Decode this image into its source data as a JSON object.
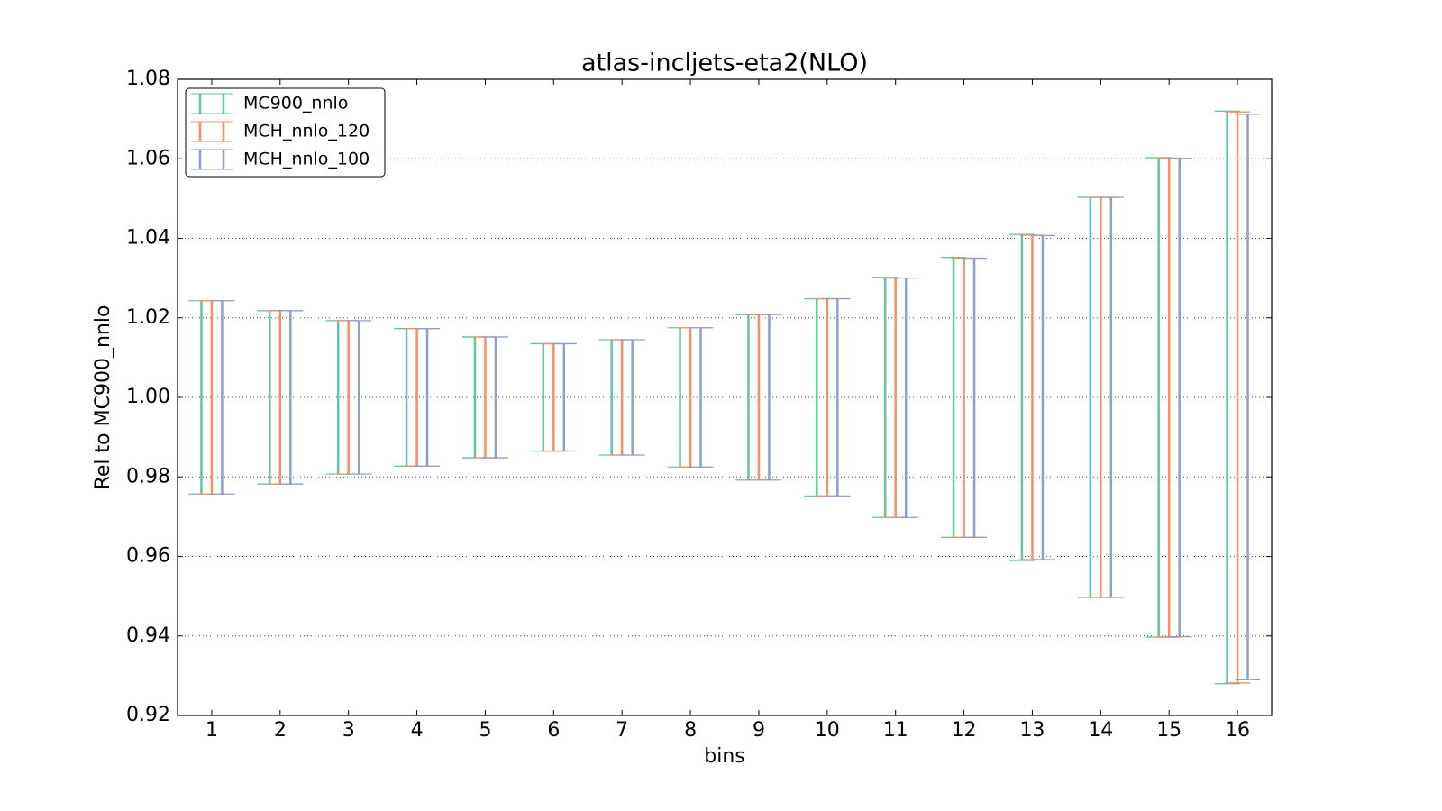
{
  "chart_data": {
    "type": "errorbar",
    "title": "atlas-incljets-eta2(NLO)",
    "x_label": "bins",
    "y_label": "Rel to MC900_nnlo",
    "x": [
      1,
      2,
      3,
      4,
      5,
      6,
      7,
      8,
      9,
      10,
      11,
      12,
      13,
      14,
      15,
      16
    ],
    "xlim": [
      0.5,
      16.5
    ],
    "xticks": [
      1,
      2,
      3,
      4,
      5,
      6,
      7,
      8,
      9,
      10,
      11,
      12,
      13,
      14,
      15,
      16
    ],
    "ylim": [
      0.92,
      1.08
    ],
    "yticks": [
      0.92,
      0.94,
      0.96,
      0.98,
      {
        "value": 1,
        "label": "1.00"
      },
      1.02,
      1.04,
      1.06,
      1.08
    ],
    "grid": true,
    "legend": "upper left",
    "series": [
      {
        "name": "MC900_nnlo",
        "color": "#66c2a5",
        "lower": [
          0.9757,
          0.9782,
          0.9807,
          0.9827,
          0.9848,
          0.9865,
          0.9855,
          0.9825,
          0.9792,
          0.9752,
          0.9698,
          0.9648,
          0.959,
          0.9497,
          0.9397,
          0.928
        ],
        "upper": [
          1.0243,
          1.0218,
          1.0193,
          1.0173,
          1.0152,
          1.0135,
          1.0145,
          1.0175,
          1.0208,
          1.0248,
          1.0302,
          1.0352,
          1.041,
          1.0503,
          1.0603,
          1.072
        ]
      },
      {
        "name": "MCH_nnlo_120",
        "color": "#fc8d62",
        "lower": [
          0.9757,
          0.9782,
          0.9807,
          0.9827,
          0.9848,
          0.9865,
          0.9855,
          0.9825,
          0.9792,
          0.9752,
          0.9698,
          0.9648,
          0.9592,
          0.9497,
          0.9397,
          0.9282
        ],
        "upper": [
          1.0243,
          1.0218,
          1.0193,
          1.0173,
          1.0152,
          1.0135,
          1.0145,
          1.0175,
          1.0208,
          1.0248,
          1.03,
          1.035,
          1.0408,
          1.0503,
          1.0602,
          1.0718
        ]
      },
      {
        "name": "MCH_nnlo_100",
        "color": "#8da0cb",
        "lower": [
          0.9757,
          0.9782,
          0.9807,
          0.9827,
          0.9848,
          0.9865,
          0.9855,
          0.9825,
          0.9792,
          0.9752,
          0.9698,
          0.9648,
          0.9592,
          0.9497,
          0.9398,
          0.929
        ],
        "upper": [
          1.0243,
          1.0218,
          1.0193,
          1.0173,
          1.0152,
          1.0135,
          1.0145,
          1.0175,
          1.0208,
          1.0248,
          1.03,
          1.035,
          1.0407,
          1.0503,
          1.0601,
          1.0712
        ]
      }
    ]
  }
}
